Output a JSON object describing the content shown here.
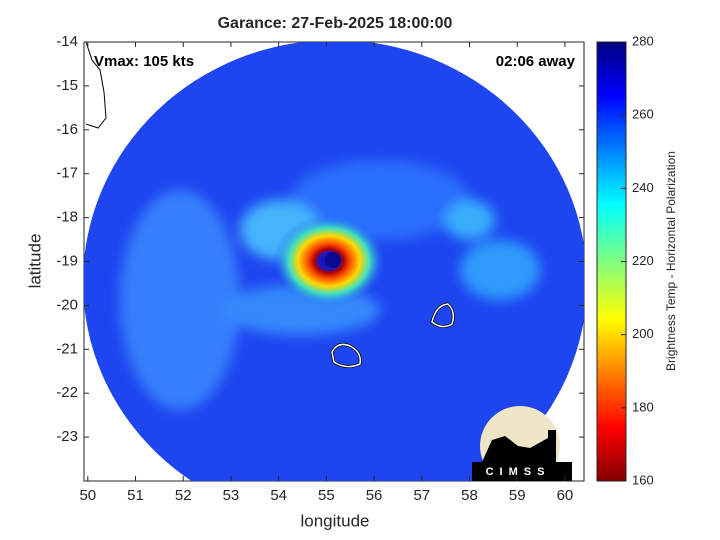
{
  "chart_data": {
    "type": "map",
    "title": "Garance: 27-Feb-2025 18:00:00",
    "annotations": [
      "Vmax: 105 kts",
      "02:06 away"
    ],
    "xlabel": "longitude",
    "ylabel": "latitude",
    "xlim": [
      49.92,
      60.4
    ],
    "ylim": [
      -24,
      -14
    ],
    "xticks": [
      50,
      51,
      52,
      53,
      54,
      55,
      56,
      57,
      58,
      59,
      60
    ],
    "yticks": [
      -23,
      -22,
      -21,
      -20,
      -19,
      -18,
      -17,
      -16,
      -15,
      -14
    ],
    "colorbar": {
      "label": "Brightness Temp - Horizontal Polarization",
      "lim": [
        160,
        280
      ],
      "ticks": [
        160,
        180,
        200,
        220,
        240,
        260,
        280
      ]
    },
    "logo": "CIMSS"
  }
}
